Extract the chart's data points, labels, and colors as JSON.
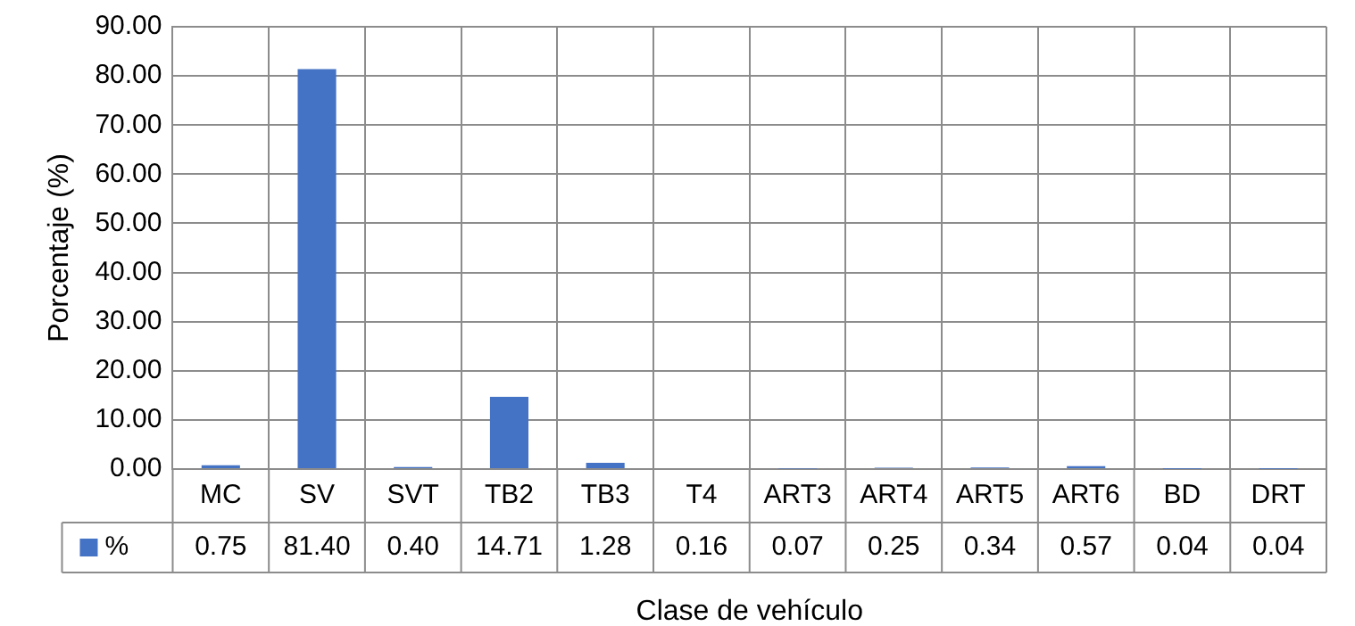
{
  "chart_data": {
    "type": "bar",
    "xlabel": "Clase de vehículo",
    "ylabel": "Porcentaje (%)",
    "categories": [
      "MC",
      "SV",
      "SVT",
      "TB2",
      "TB3",
      "T4",
      "ART3",
      "ART4",
      "ART5",
      "ART6",
      "BD",
      "DRT"
    ],
    "series": [
      {
        "name": "%",
        "color": "#4472c4",
        "values": [
          0.75,
          81.4,
          0.4,
          14.71,
          1.28,
          0.16,
          0.07,
          0.25,
          0.34,
          0.57,
          0.04,
          0.04
        ],
        "value_labels": [
          "0.75",
          "81.40",
          "0.40",
          "14.71",
          "1.28",
          "0.16",
          "0.07",
          "0.25",
          "0.34",
          "0.57",
          "0.04",
          "0.04"
        ]
      }
    ],
    "ylim": [
      0,
      90
    ],
    "yticks": [
      {
        "value": 0,
        "label": "0.00"
      },
      {
        "value": 10,
        "label": "10.00"
      },
      {
        "value": 20,
        "label": "20.00"
      },
      {
        "value": 30,
        "label": "30.00"
      },
      {
        "value": 40,
        "label": "40.00"
      },
      {
        "value": 50,
        "label": "50.00"
      },
      {
        "value": 60,
        "label": "60.00"
      },
      {
        "value": 70,
        "label": "70.00"
      },
      {
        "value": 80,
        "label": "80.00"
      },
      {
        "value": 90,
        "label": "90.00"
      }
    ],
    "grid": true,
    "legend": "bottom"
  }
}
